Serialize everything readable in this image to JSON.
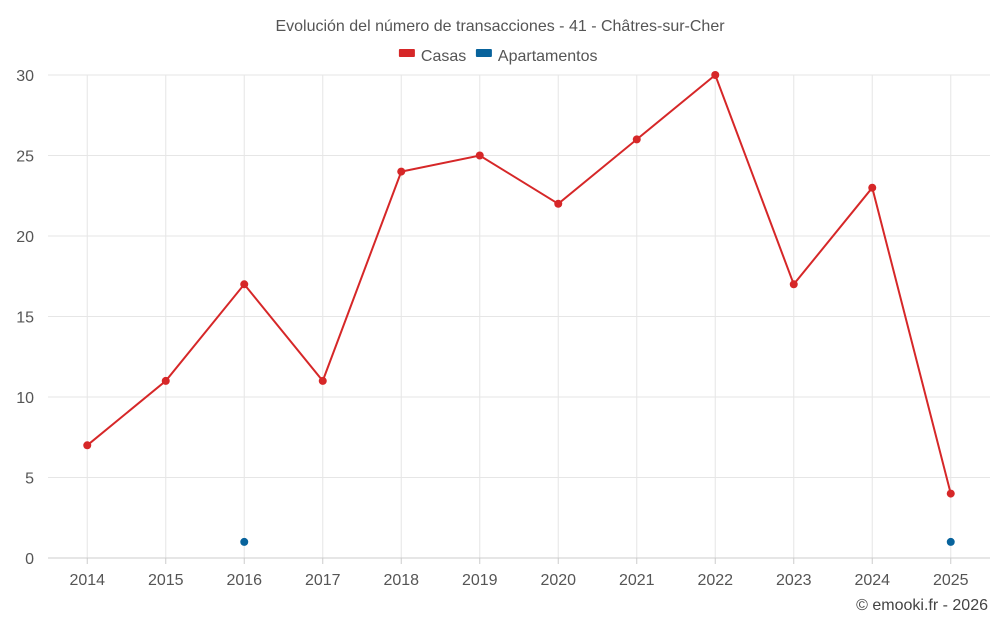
{
  "chart_data": {
    "type": "line",
    "title": "Evolución del número de transacciones - 41 - Châtres-sur-Cher",
    "categories": [
      "2014",
      "2015",
      "2016",
      "2017",
      "2018",
      "2019",
      "2020",
      "2021",
      "2022",
      "2023",
      "2024",
      "2025"
    ],
    "series": [
      {
        "name": "Casas",
        "color": "#d62728",
        "values": [
          7,
          11,
          17,
          11,
          24,
          25,
          22,
          26,
          30,
          17,
          23,
          4
        ]
      },
      {
        "name": "Apartamentos",
        "color": "#08639c",
        "values": [
          null,
          null,
          1,
          null,
          null,
          null,
          null,
          null,
          null,
          null,
          null,
          1
        ]
      }
    ],
    "yticks": [
      0,
      5,
      10,
      15,
      20,
      25,
      30
    ],
    "ylim": [
      0,
      30
    ],
    "xlabel": "",
    "ylabel": "",
    "grid": true,
    "legend": "top-center"
  },
  "credit": "© emooki.fr - 2026"
}
